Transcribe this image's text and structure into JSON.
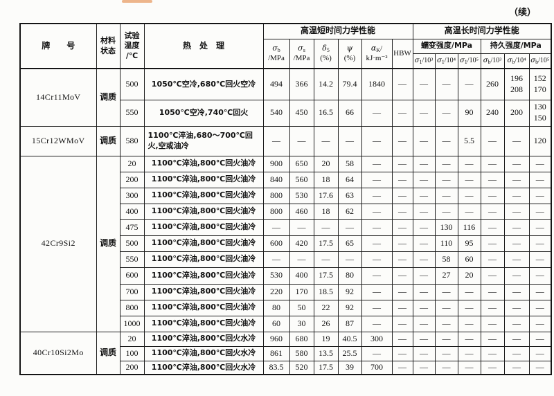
{
  "page": {
    "continued_label": "（续）"
  },
  "table": {
    "header": {
      "grade": "牌　　号",
      "state": "材料\n状态",
      "temp": "试验\n温度\n/℃",
      "heat": "热　处　理",
      "short_group": "高温短时间力学性能",
      "long_group": "高温长时间力学性能",
      "creep_group": "蠕变强度/MPa",
      "endurance_group": "持久强度/MPa",
      "sub_cols": [
        {
          "base": "σ",
          "sub": "b",
          "line2": "/MPa",
          "name": "col-header-sigma-b"
        },
        {
          "base": "σ",
          "sub": "s",
          "line2": "/MPa",
          "name": "col-header-sigma-s"
        },
        {
          "base": "δ",
          "sub": "5",
          "line2": "(%)",
          "name": "col-header-delta-5"
        },
        {
          "base": "ψ",
          "line2": "(%)",
          "name": "col-header-psi"
        },
        {
          "base": "α",
          "sub": "K",
          "rest": "/",
          "line2": "kJ·m⁻²",
          "name": "col-header-alpha-k"
        },
        {
          "base": "HBW",
          "plain": true,
          "name": "col-header-hbw"
        }
      ],
      "creep_cols": [
        {
          "base": "σ",
          "sub": "1",
          "rest": "/10³",
          "name": "col-header-sigma1-10e3"
        },
        {
          "base": "σ",
          "sub": "1",
          "rest": "/10⁴",
          "name": "col-header-sigma1-10e4"
        },
        {
          "base": "σ",
          "sub": "1",
          "rest": "/10⁵",
          "name": "col-header-sigma1-10e5"
        }
      ],
      "endurance_cols": [
        {
          "base": "σ",
          "sub": "b",
          "rest": "/10³",
          "name": "col-header-sigmab-10e3"
        },
        {
          "base": "σ",
          "sub": "b",
          "rest": "/10⁴",
          "name": "col-header-sigmab-10e4"
        },
        {
          "base": "σ",
          "sub": "b",
          "rest": "/10⁵",
          "name": "col-header-sigmab-10e5"
        }
      ]
    },
    "sections": [
      {
        "grade": "14Cr11MoV",
        "state": "调质",
        "rows": [
          {
            "temp": "500",
            "heat": "1050℃空冷,680℃回火空冷",
            "values": [
              "494",
              "366",
              "14.2",
              "79.4",
              "1840",
              "—",
              "—",
              "—",
              "—",
              "260",
              "196\n208",
              "152\n170"
            ]
          },
          {
            "temp": "550",
            "heat": "1050℃空冷,740℃回火",
            "values": [
              "540",
              "450",
              "16.5",
              "66",
              "—",
              "—",
              "—",
              "—",
              "90",
              "240",
              "200",
              "130\n150"
            ]
          }
        ]
      },
      {
        "grade": "15Cr12WMoV",
        "state": "调质",
        "rows": [
          {
            "temp": "580",
            "heat": "1100℃淬油,680～700℃回火,空或油冷",
            "wrap": true,
            "values": [
              "—",
              "—",
              "—",
              "—",
              "—",
              "—",
              "—",
              "—",
              "5.5",
              "—",
              "—",
              "120"
            ]
          }
        ]
      },
      {
        "grade": "42Cr9Si2",
        "state": "调质",
        "rows": [
          {
            "temp": "20",
            "heat": "1100℃淬油,800℃回火油冷",
            "values": [
              "900",
              "650",
              "20",
              "58",
              "—",
              "—",
              "—",
              "—",
              "—",
              "—",
              "—",
              "—"
            ]
          },
          {
            "temp": "200",
            "heat": "1100℃淬油,800℃回火油冷",
            "values": [
              "840",
              "560",
              "18",
              "64",
              "—",
              "—",
              "—",
              "—",
              "—",
              "—",
              "—",
              "—"
            ]
          },
          {
            "temp": "300",
            "heat": "1100℃淬油,800℃回火油冷",
            "values": [
              "800",
              "530",
              "17.6",
              "63",
              "—",
              "—",
              "—",
              "—",
              "—",
              "—",
              "—",
              "—"
            ]
          },
          {
            "temp": "400",
            "heat": "1100℃淬油,800℃回火油冷",
            "values": [
              "800",
              "460",
              "18",
              "62",
              "—",
              "—",
              "—",
              "—",
              "—",
              "—",
              "—",
              "—"
            ]
          },
          {
            "temp": "475",
            "heat": "1100℃淬油,800℃回火油冷",
            "values": [
              "—",
              "—",
              "—",
              "—",
              "—",
              "—",
              "—",
              "130",
              "116",
              "—",
              "—",
              "—"
            ]
          },
          {
            "temp": "500",
            "heat": "1100℃淬油,800℃回火油冷",
            "values": [
              "600",
              "420",
              "17.5",
              "65",
              "—",
              "—",
              "—",
              "110",
              "95",
              "—",
              "—",
              "—"
            ]
          },
          {
            "temp": "550",
            "heat": "1100℃淬油,800℃回火油冷",
            "values": [
              "—",
              "—",
              "—",
              "—",
              "—",
              "—",
              "—",
              "58",
              "60",
              "—",
              "—",
              "—"
            ]
          },
          {
            "temp": "600",
            "heat": "1100℃淬油,800℃回火油冷",
            "values": [
              "530",
              "400",
              "17.5",
              "80",
              "—",
              "—",
              "—",
              "27",
              "20",
              "—",
              "—",
              "—"
            ]
          },
          {
            "temp": "700",
            "heat": "1100℃淬油,800℃回火油冷",
            "values": [
              "220",
              "170",
              "18.5",
              "92",
              "—",
              "—",
              "—",
              "—",
              "—",
              "—",
              "—",
              "—"
            ]
          },
          {
            "temp": "800",
            "heat": "1100℃淬油,800℃回火油冷",
            "values": [
              "80",
              "50",
              "22",
              "92",
              "—",
              "—",
              "—",
              "—",
              "—",
              "—",
              "—",
              "—"
            ]
          },
          {
            "temp": "1000",
            "heat": "1100℃淬油,800℃回火油冷",
            "values": [
              "60",
              "30",
              "26",
              "87",
              "—",
              "—",
              "—",
              "—",
              "—",
              "—",
              "—",
              "—"
            ]
          }
        ]
      },
      {
        "grade": "40Cr10Si2Mo",
        "state": "调质",
        "rows": [
          {
            "temp": "20",
            "heat": "1100℃淬油,800℃回火水冷",
            "values": [
              "960",
              "680",
              "19",
              "40.5",
              "300",
              "—",
              "—",
              "—",
              "—",
              "—",
              "—",
              "—"
            ]
          },
          {
            "temp": "100",
            "heat": "1100℃淬油,800℃回火水冷",
            "values": [
              "861",
              "580",
              "13.5",
              "25.5",
              "—",
              "—",
              "—",
              "—",
              "—",
              "—",
              "—",
              "—"
            ]
          },
          {
            "temp": "200",
            "heat": "1100℃淬油,800℃回火水冷",
            "values": [
              "83.5",
              "520",
              "17.5",
              "39",
              "700",
              "—",
              "—",
              "—",
              "—",
              "—",
              "—",
              "—"
            ]
          }
        ]
      }
    ]
  }
}
